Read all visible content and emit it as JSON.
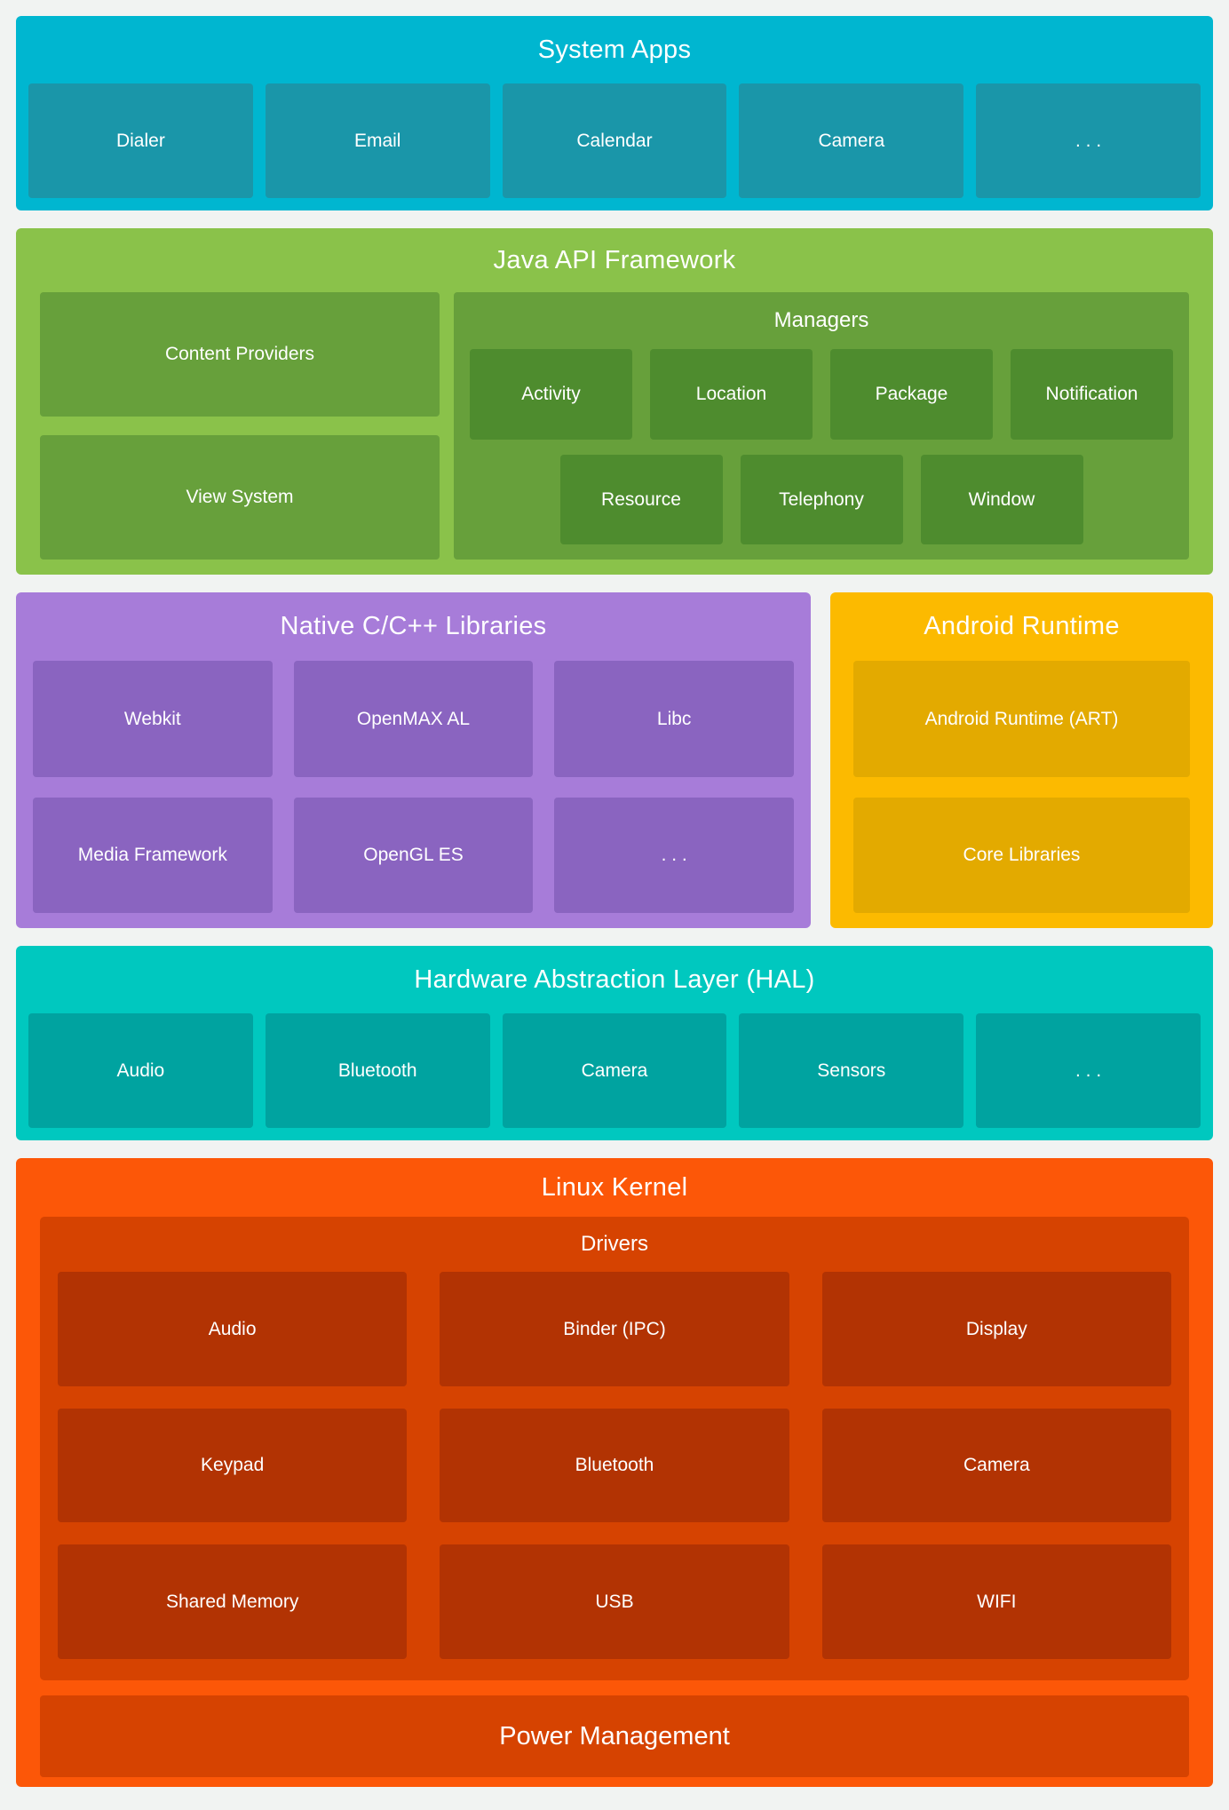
{
  "page": {
    "background": "#f1f3f2",
    "text_color": "#ffffff"
  },
  "sections": {
    "system_apps": {
      "title": "System Apps",
      "colors": {
        "bg": "#00b6d0",
        "box": "#1a96a9"
      },
      "boxes": [
        "Dialer",
        "Email",
        "Calendar",
        "Camera",
        ". . ."
      ]
    },
    "java_api": {
      "title": "Java API Framework",
      "colors": {
        "bg": "#8ac24a",
        "box": "#67a03b",
        "inner": "#4e8c2e"
      },
      "left_boxes": [
        "Content Providers",
        "View System"
      ],
      "managers": {
        "title": "Managers",
        "row1": [
          "Activity",
          "Location",
          "Package",
          "Notification"
        ],
        "row2": [
          "Resource",
          "Telephony",
          "Window"
        ]
      }
    },
    "native_libs": {
      "title": "Native C/C++ Libraries",
      "colors": {
        "bg": "#a77cd9",
        "box": "#8a64c0"
      },
      "boxes": [
        "Webkit",
        "OpenMAX AL",
        "Libc",
        "Media Framework",
        "OpenGL ES",
        ". . ."
      ]
    },
    "android_runtime": {
      "title": "Android Runtime",
      "colors": {
        "bg": "#fcba00",
        "box": "#e3aa00"
      },
      "boxes": [
        "Android Runtime (ART)",
        "Core Libraries"
      ]
    },
    "hal": {
      "title": "Hardware Abstraction Layer (HAL)",
      "colors": {
        "bg": "#00c8bf",
        "box": "#00a3a0"
      },
      "boxes": [
        "Audio",
        "Bluetooth",
        "Camera",
        "Sensors",
        ". . ."
      ]
    },
    "linux_kernel": {
      "title": "Linux Kernel",
      "colors": {
        "bg": "#fc5708",
        "box": "#d64301",
        "inner": "#b23303"
      },
      "drivers": {
        "title": "Drivers",
        "boxes": [
          "Audio",
          "Binder (IPC)",
          "Display",
          "Keypad",
          "Bluetooth",
          "Camera",
          "Shared Memory",
          "USB",
          "WIFI"
        ]
      },
      "power_label": "Power Management"
    }
  }
}
